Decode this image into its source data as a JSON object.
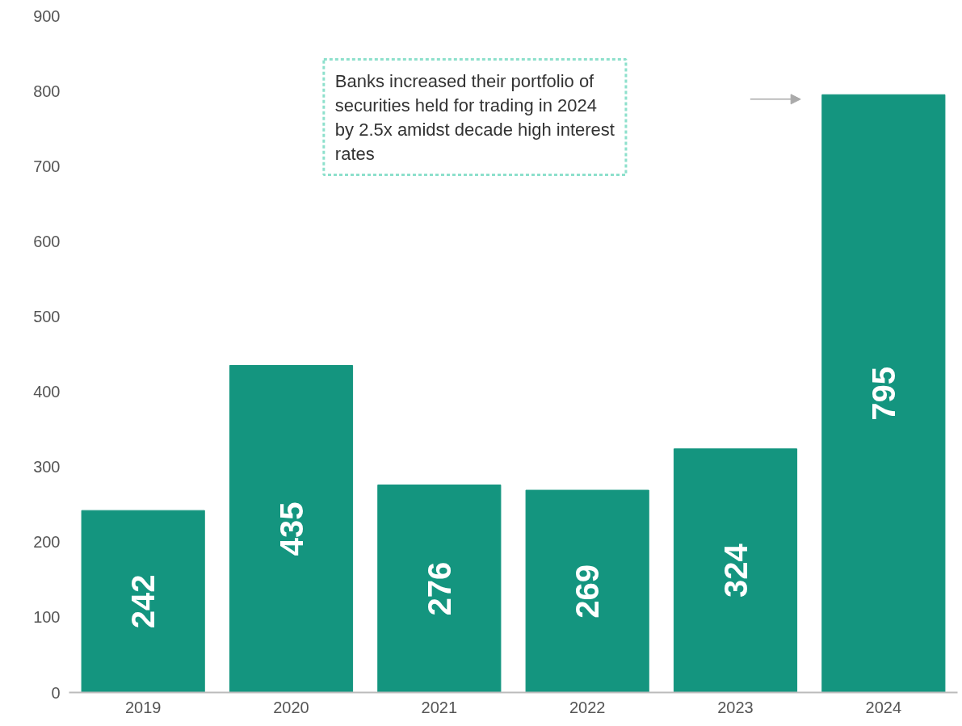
{
  "chart_data": {
    "type": "bar",
    "categories": [
      "2019",
      "2020",
      "2021",
      "2022",
      "2023",
      "2024"
    ],
    "values": [
      242,
      435,
      276,
      269,
      324,
      795
    ],
    "color": "#14957f",
    "ylim": [
      0,
      900
    ],
    "yticks": [
      0,
      100,
      200,
      300,
      400,
      500,
      600,
      700,
      800,
      900
    ],
    "grid": false,
    "data_labels": true,
    "annotations": [
      "Banks increased their portfolio of securities held for trading in 2024 by 2.5x amidst decade high interest rates"
    ]
  }
}
